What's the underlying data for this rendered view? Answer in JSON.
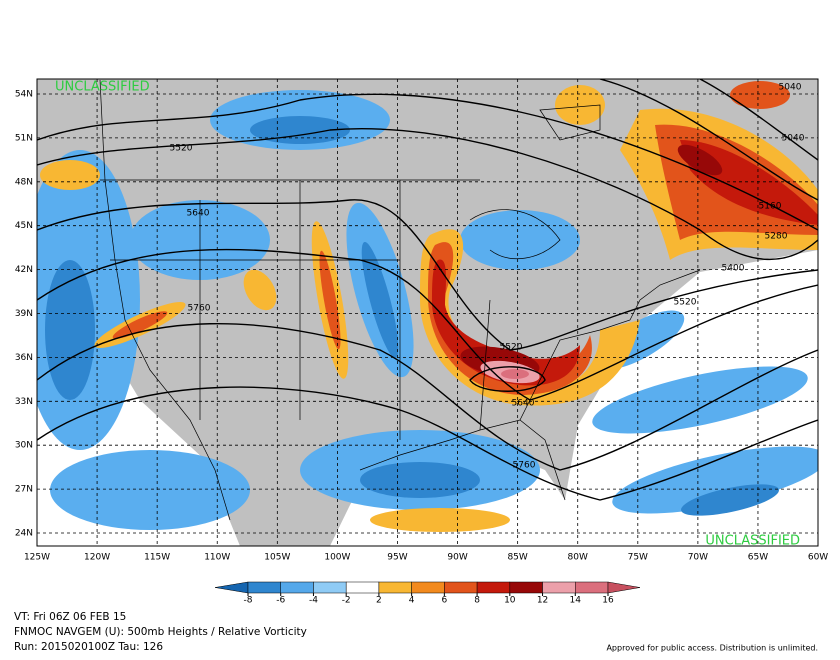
{
  "map": {
    "lat_labels": [
      "54N",
      "51N",
      "48N",
      "45N",
      "42N",
      "39N",
      "36N",
      "33N",
      "30N",
      "27N",
      "24N"
    ],
    "lon_labels": [
      "125W",
      "120W",
      "115W",
      "110W",
      "105W",
      "100W",
      "95W",
      "90W",
      "85W",
      "80W",
      "75W",
      "70W",
      "65W",
      "60W"
    ],
    "classification": [
      "UNCLASSIFIED",
      "UNCLASSIFIED"
    ],
    "contour_labels": [
      5520,
      5640,
      5760,
      5040,
      5040,
      5160,
      5280,
      5400,
      5520,
      5520,
      5640,
      5760
    ]
  },
  "colorbar": {
    "ticks": [
      -8,
      -6,
      -4,
      -2,
      2,
      4,
      6,
      8,
      10,
      12,
      14,
      16
    ],
    "colors": [
      "#1565b0",
      "#2f86cf",
      "#55a8ea",
      "#8fcbf5",
      "#ffffff",
      "#f8b733",
      "#f28a1e",
      "#e2541b",
      "#c4190b",
      "#970808",
      "#eca0aa",
      "#db6f7d",
      "#c7505f"
    ]
  },
  "footer": {
    "valid_time": "VT: Fri 06Z 06 FEB 15",
    "product": "FNMOC NAVGEM (U): 500mb Heights / Relative Vorticity",
    "run": "Run: 2015020100Z Tau: 126",
    "release": "Approved for public access. Distribution is unlimited."
  }
}
